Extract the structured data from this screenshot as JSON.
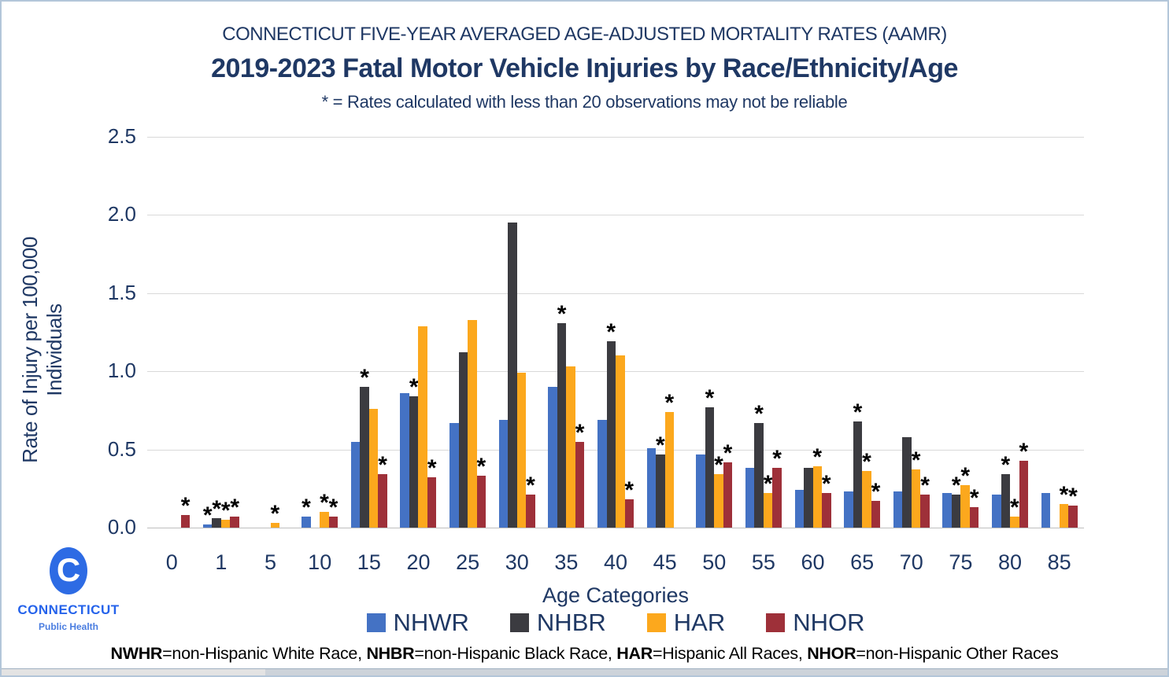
{
  "header": {
    "supertitle": "CONNECTICUT FIVE-YEAR AVERAGED AGE-ADJUSTED MORTALITY RATES (AAMR)",
    "title": "2019-2023 Fatal Motor Vehicle Injuries by Race/Ethnicity/Age",
    "subtitle": "* = Rates calculated with less than 20 observations may not be reliable"
  },
  "chart_data": {
    "type": "bar",
    "title": "2019-2023 Fatal Motor Vehicle Injuries by Race/Ethnicity/Age",
    "xlabel": "Age Categories",
    "ylabel": "Rate of Injury per 100,000 Individuals",
    "ylim": [
      0,
      2.5
    ],
    "yticks": [
      "0.0",
      "0.5",
      "1.0",
      "1.5",
      "2.0",
      "2.5"
    ],
    "grid": true,
    "legend_position": "bottom",
    "star_note": "* = rate based on fewer than 20 observations",
    "categories": [
      "0",
      "1",
      "5",
      "10",
      "15",
      "20",
      "25",
      "30",
      "35",
      "40",
      "45",
      "50",
      "55",
      "60",
      "65",
      "70",
      "75",
      "80",
      "85"
    ],
    "series": [
      {
        "name": "NHWR",
        "color": "#4472C4",
        "values": [
          null,
          0.02,
          null,
          0.07,
          0.55,
          0.86,
          0.67,
          0.69,
          0.9,
          0.69,
          0.51,
          0.47,
          0.38,
          0.24,
          0.23,
          0.23,
          0.22,
          0.21,
          0.22
        ],
        "starred": [
          false,
          true,
          false,
          true,
          false,
          false,
          false,
          false,
          false,
          false,
          false,
          false,
          false,
          false,
          false,
          false,
          false,
          false,
          false
        ]
      },
      {
        "name": "NHBR",
        "color": "#3B3B40",
        "values": [
          null,
          0.06,
          null,
          null,
          0.9,
          0.84,
          1.12,
          1.95,
          1.31,
          1.19,
          0.47,
          0.77,
          0.67,
          0.38,
          0.68,
          0.58,
          0.21,
          0.34,
          null
        ],
        "starred": [
          false,
          true,
          false,
          false,
          true,
          true,
          false,
          false,
          true,
          true,
          true,
          true,
          true,
          false,
          true,
          false,
          true,
          true,
          false
        ]
      },
      {
        "name": "HAR",
        "color": "#FCA81D",
        "values": [
          null,
          0.05,
          0.03,
          0.1,
          0.76,
          1.29,
          1.33,
          0.99,
          1.03,
          1.1,
          0.74,
          0.34,
          0.22,
          0.39,
          0.36,
          0.37,
          0.27,
          0.07,
          0.15
        ],
        "starred": [
          false,
          true,
          true,
          true,
          false,
          false,
          false,
          false,
          false,
          false,
          true,
          true,
          true,
          true,
          true,
          true,
          true,
          true,
          true
        ]
      },
      {
        "name": "NHOR",
        "color": "#9E3039",
        "values": [
          0.08,
          0.07,
          null,
          0.07,
          0.34,
          0.32,
          0.33,
          0.21,
          0.55,
          0.18,
          null,
          0.42,
          0.38,
          0.22,
          0.17,
          0.21,
          0.13,
          0.43,
          0.14
        ],
        "starred": [
          true,
          true,
          false,
          true,
          true,
          true,
          true,
          true,
          true,
          true,
          false,
          true,
          true,
          true,
          true,
          true,
          true,
          true,
          true
        ]
      }
    ]
  },
  "footnote": {
    "seg1_bold": "NWHR",
    "seg1_text": "=non-Hispanic White Race, ",
    "seg2_bold": "NHBR",
    "seg2_text": "=non-Hispanic Black Race, ",
    "seg3_bold": "HAR",
    "seg3_text": "=Hispanic All Races, ",
    "seg4_bold": "NHOR",
    "seg4_text": "=non-Hispanic Other Races"
  },
  "logo": {
    "mark": "C",
    "name": "CONNECTICUT",
    "subname": "Public Health"
  }
}
